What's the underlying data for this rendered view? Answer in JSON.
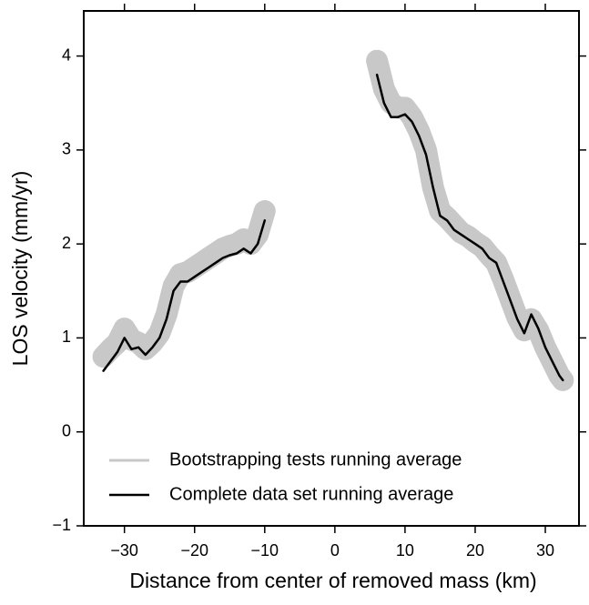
{
  "chart_data": {
    "type": "line",
    "x_label": "Distance from center of removed mass (km)",
    "y_label": "LOS velocity (mm/yr)",
    "x": [
      -33,
      -32,
      -31,
      -30,
      -29,
      -28,
      -27,
      -26,
      -25,
      -24,
      -23,
      -22,
      -21,
      -20,
      -19,
      -18,
      -17,
      -16,
      -15,
      -14,
      -13,
      -12,
      -11,
      -10,
      0,
      6,
      7,
      8,
      9,
      10,
      11,
      12,
      13,
      14,
      15,
      16,
      17,
      18,
      19,
      20,
      21,
      22,
      23,
      24,
      25,
      26,
      27,
      28,
      29,
      30,
      31,
      32,
      32.5
    ],
    "series": [
      {
        "name": "Bootstrapping tests running average",
        "color": "#c8c8c8",
        "values": [
          0.8,
          0.88,
          0.95,
          1.1,
          0.98,
          0.95,
          0.88,
          0.95,
          1.05,
          1.25,
          1.55,
          1.68,
          1.7,
          1.75,
          1.8,
          1.85,
          1.9,
          1.95,
          1.98,
          2.0,
          2.05,
          2.0,
          2.1,
          2.35,
          null,
          3.95,
          3.65,
          3.5,
          3.45,
          3.45,
          3.35,
          3.2,
          3.0,
          2.6,
          2.35,
          2.28,
          2.2,
          2.12,
          2.08,
          2.02,
          1.97,
          1.88,
          1.8,
          1.62,
          1.42,
          1.22,
          1.08,
          1.2,
          1.08,
          0.9,
          0.75,
          0.6,
          0.55
        ]
      },
      {
        "name": "Complete data set running average",
        "color": "#000000",
        "values": [
          0.65,
          0.75,
          0.85,
          1.0,
          0.88,
          0.9,
          0.82,
          0.9,
          1.0,
          1.2,
          1.5,
          1.6,
          1.6,
          1.65,
          1.7,
          1.75,
          1.8,
          1.85,
          1.88,
          1.9,
          1.95,
          1.9,
          2.0,
          2.25,
          null,
          3.8,
          3.5,
          3.35,
          3.35,
          3.38,
          3.3,
          3.15,
          2.95,
          2.6,
          2.3,
          2.25,
          2.15,
          2.1,
          2.05,
          2.0,
          1.95,
          1.85,
          1.8,
          1.6,
          1.4,
          1.2,
          1.05,
          1.25,
          1.1,
          0.9,
          0.75,
          0.6,
          0.55
        ]
      }
    ],
    "xlim": [
      -35.8,
      34.8
    ],
    "ylim": [
      -1,
      4.48
    ],
    "xticks": [
      {
        "value": -30,
        "label": "−30"
      },
      {
        "value": -20,
        "label": "−20"
      },
      {
        "value": -10,
        "label": "−10"
      },
      0,
      10,
      20,
      30
    ],
    "yticks": [
      {
        "value": -1,
        "label": "−1"
      },
      0,
      1,
      2,
      3,
      4
    ],
    "grid": false,
    "legend": "lower left"
  }
}
